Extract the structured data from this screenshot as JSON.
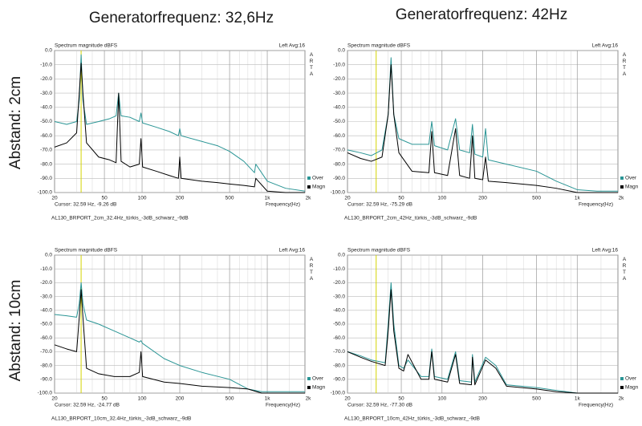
{
  "column_headers": [
    "Generatorfrequenz: 32,6Hz",
    "Generatorfrequenz: 42Hz"
  ],
  "row_labels": [
    "Abstand: 2cm",
    "Abstand: 10cm"
  ],
  "chart_data": [
    {
      "type": "line",
      "title": "Spectrum magnitude dBFS",
      "channel": "Left Avg:16",
      "brand": "ARTA",
      "xlabel": "Frequency(Hz)",
      "xscale": "log",
      "grid": true,
      "x": [
        20,
        25,
        30,
        31.5,
        32.6,
        33.7,
        36,
        45,
        55,
        62,
        65,
        68,
        80,
        95,
        98,
        101,
        130,
        165,
        195,
        200,
        205,
        300,
        400,
        500,
        650,
        790,
        810,
        1000,
        1400,
        2000
      ],
      "series": [
        {
          "name": "Over",
          "color": "#2a9595",
          "values": [
            -50,
            -52,
            -50,
            -35,
            -3,
            -35,
            -52,
            -50,
            -48,
            -46,
            -30,
            -46,
            -47,
            -50,
            -44,
            -51,
            -54,
            -57,
            -60,
            -55,
            -60,
            -64,
            -67,
            -71,
            -78,
            -86,
            -80,
            -92,
            -97,
            -99
          ]
        },
        {
          "name": "Magn",
          "color": "#000000",
          "values": [
            -68,
            -65,
            -58,
            -30,
            -9,
            -30,
            -65,
            -75,
            -77,
            -79,
            -30,
            -78,
            -82,
            -80,
            -62,
            -82,
            -85,
            -88,
            -90,
            -75,
            -90,
            -92,
            -93,
            -94,
            -95,
            -96,
            -90,
            -99,
            -100,
            -100
          ]
        }
      ],
      "xlim": [
        20,
        2000
      ],
      "ylim": [
        -100,
        0
      ],
      "xticks": [
        20,
        50,
        100,
        200,
        500,
        {
          "value": 1000,
          "label": "1k"
        },
        {
          "value": 2000,
          "label": "2k"
        }
      ],
      "xminorticks": [
        30,
        40,
        60,
        70,
        80,
        90,
        150,
        300,
        400,
        600,
        700,
        800,
        900,
        1500
      ],
      "yticks": [
        {
          "value": 0,
          "label": "0.0"
        },
        {
          "value": -10,
          "label": "-10.0"
        },
        {
          "value": -20,
          "label": "-20.0"
        },
        {
          "value": -30,
          "label": "-30.0"
        },
        {
          "value": -40,
          "label": "-40.0"
        },
        {
          "value": -50,
          "label": "-50.0"
        },
        {
          "value": -60,
          "label": "-60.0"
        },
        {
          "value": -70,
          "label": "-70.0"
        },
        {
          "value": -80,
          "label": "-80.0"
        },
        {
          "value": -90,
          "label": "-90.0"
        },
        {
          "value": -100,
          "label": "-100.0"
        }
      ],
      "cursor": 32.59,
      "cursor_color": "#d4d400",
      "cursor_text": "Cursor: 32.59 Hz, -9.26 dB",
      "caption": "AL130_BRPORT_2cm_32.4Hz_türkis_-3dB_schwarz_-9dB"
    },
    {
      "type": "line",
      "title": "Spectrum magnitude dBFS",
      "channel": "Left Avg:16",
      "brand": "ARTA",
      "xlabel": "Frequency(Hz)",
      "xscale": "log",
      "grid": true,
      "x": [
        20,
        25,
        30,
        36,
        40,
        42,
        44,
        48,
        60,
        80,
        84,
        88,
        110,
        126,
        135,
        160,
        168,
        175,
        200,
        210,
        220,
        300,
        500,
        700,
        1000,
        1400,
        2000
      ],
      "series": [
        {
          "name": "Over",
          "color": "#2a9595",
          "values": [
            -70,
            -72,
            -74,
            -70,
            -45,
            -5,
            -45,
            -62,
            -66,
            -66,
            -50,
            -67,
            -70,
            -48,
            -70,
            -72,
            -52,
            -73,
            -75,
            -55,
            -77,
            -80,
            -85,
            -92,
            -98,
            -99,
            -99
          ]
        },
        {
          "name": "Magn",
          "color": "#000000",
          "values": [
            -72,
            -76,
            -78,
            -75,
            -45,
            -10,
            -45,
            -72,
            -85,
            -86,
            -57,
            -86,
            -88,
            -55,
            -88,
            -90,
            -60,
            -90,
            -91,
            -75,
            -92,
            -93,
            -95,
            -97,
            -100,
            -100,
            -100
          ]
        }
      ],
      "xlim": [
        20,
        2000
      ],
      "ylim": [
        -100,
        0
      ],
      "xticks": [
        20,
        50,
        100,
        200,
        500,
        {
          "value": 1000,
          "label": "1k"
        },
        {
          "value": 2000,
          "label": "2k"
        }
      ],
      "xminorticks": [
        30,
        40,
        60,
        70,
        80,
        90,
        150,
        300,
        400,
        600,
        700,
        800,
        900,
        1500
      ],
      "yticks": [
        {
          "value": 0,
          "label": "0.0"
        },
        {
          "value": -10,
          "label": "-10.0"
        },
        {
          "value": -20,
          "label": "-20.0"
        },
        {
          "value": -30,
          "label": "-30.0"
        },
        {
          "value": -40,
          "label": "-40.0"
        },
        {
          "value": -50,
          "label": "-50.0"
        },
        {
          "value": -60,
          "label": "-60.0"
        },
        {
          "value": -70,
          "label": "-70.0"
        },
        {
          "value": -80,
          "label": "-80.0"
        },
        {
          "value": -90,
          "label": "-90.0"
        },
        {
          "value": -100,
          "label": "-100.0"
        }
      ],
      "cursor": 32.59,
      "cursor_color": "#d4d400",
      "cursor_text": "Cursor: 32.59 Hz, -75.29 dB",
      "caption": "AL130_BRPORT_2cm_42Hz_türkis_-3dB_schwarz_-9dB"
    },
    {
      "type": "line",
      "title": "Spectrum magnitude dBFS",
      "channel": "Left Avg:16",
      "brand": "ARTA",
      "xlabel": "Frequency(Hz)",
      "xscale": "log",
      "grid": true,
      "x": [
        20,
        25,
        30,
        31.5,
        32.6,
        33.7,
        36,
        45,
        60,
        80,
        95,
        98,
        101,
        150,
        200,
        300,
        500,
        700,
        900,
        1300,
        2000
      ],
      "series": [
        {
          "name": "Over",
          "color": "#2a9595",
          "values": [
            -43,
            -44,
            -45,
            -35,
            -20,
            -35,
            -47,
            -50,
            -55,
            -60,
            -63,
            -62,
            -64,
            -75,
            -80,
            -85,
            -90,
            -97,
            -99,
            -99,
            -99
          ]
        },
        {
          "name": "Magn",
          "color": "#000000",
          "values": [
            -65,
            -68,
            -70,
            -45,
            -25,
            -45,
            -82,
            -86,
            -88,
            -88,
            -85,
            -70,
            -88,
            -92,
            -93,
            -95,
            -96,
            -97,
            -100,
            -100,
            -100
          ]
        }
      ],
      "xlim": [
        20,
        2000
      ],
      "ylim": [
        -100,
        0
      ],
      "xticks": [
        20,
        50,
        100,
        200,
        500,
        {
          "value": 1000,
          "label": "1k"
        },
        {
          "value": 2000,
          "label": "2k"
        }
      ],
      "xminorticks": [
        30,
        40,
        60,
        70,
        80,
        90,
        150,
        300,
        400,
        600,
        700,
        800,
        900,
        1500
      ],
      "yticks": [
        {
          "value": 0,
          "label": "0.0"
        },
        {
          "value": -10,
          "label": "-10.0"
        },
        {
          "value": -20,
          "label": "-20.0"
        },
        {
          "value": -30,
          "label": "-30.0"
        },
        {
          "value": -40,
          "label": "-40.0"
        },
        {
          "value": -50,
          "label": "-50.0"
        },
        {
          "value": -60,
          "label": "-60.0"
        },
        {
          "value": -70,
          "label": "-70.0"
        },
        {
          "value": -80,
          "label": "-80.0"
        },
        {
          "value": -90,
          "label": "-90.0"
        },
        {
          "value": -100,
          "label": "-100.0"
        }
      ],
      "cursor": 32.59,
      "cursor_color": "#d4d400",
      "cursor_text": "Cursor: 32.59 Hz, -24.77 dB",
      "caption": "AL130_BRPORT_10cm_32.4Hz_türkis_-3dB_schwarz_-9dB"
    },
    {
      "type": "line",
      "title": "Spectrum magnitude dBFS",
      "channel": "Left Avg:16",
      "brand": "ARTA",
      "xlabel": "Frequency(Hz)",
      "xscale": "log",
      "grid": true,
      "x": [
        20,
        25,
        30,
        38,
        40,
        42,
        44,
        48,
        52,
        56,
        70,
        80,
        84,
        88,
        110,
        126,
        135,
        165,
        168,
        175,
        210,
        250,
        300,
        500,
        700,
        1000,
        2000
      ],
      "series": [
        {
          "name": "Over",
          "color": "#2a9595",
          "values": [
            -70,
            -73,
            -76,
            -78,
            -50,
            -20,
            -50,
            -80,
            -82,
            -76,
            -88,
            -88,
            -68,
            -88,
            -90,
            -70,
            -91,
            -92,
            -72,
            -92,
            -74,
            -80,
            -94,
            -96,
            -98,
            -100,
            -100
          ]
        },
        {
          "name": "Magn",
          "color": "#000000",
          "values": [
            -70,
            -74,
            -77,
            -80,
            -55,
            -25,
            -55,
            -82,
            -84,
            -72,
            -90,
            -90,
            -70,
            -90,
            -92,
            -72,
            -93,
            -94,
            -74,
            -94,
            -76,
            -82,
            -95,
            -97,
            -99,
            -100,
            -100
          ]
        }
      ],
      "xlim": [
        20,
        2000
      ],
      "ylim": [
        -100,
        0
      ],
      "xticks": [
        20,
        50,
        100,
        200,
        500,
        {
          "value": 1000,
          "label": "1k"
        },
        {
          "value": 2000,
          "label": "2k"
        }
      ],
      "xminorticks": [
        30,
        40,
        60,
        70,
        80,
        90,
        150,
        300,
        400,
        600,
        700,
        800,
        900,
        1500
      ],
      "yticks": [
        {
          "value": 0,
          "label": "0.0"
        },
        {
          "value": -10,
          "label": "-10.0"
        },
        {
          "value": -20,
          "label": "-20.0"
        },
        {
          "value": -30,
          "label": "-30.0"
        },
        {
          "value": -40,
          "label": "-40.0"
        },
        {
          "value": -50,
          "label": "-50.0"
        },
        {
          "value": -60,
          "label": "-60.0"
        },
        {
          "value": -70,
          "label": "-70.0"
        },
        {
          "value": -80,
          "label": "-80.0"
        },
        {
          "value": -90,
          "label": "-90.0"
        },
        {
          "value": -100,
          "label": "-100.0"
        }
      ],
      "cursor": 32.59,
      "cursor_color": "#d4d400",
      "cursor_text": "Cursor: 32.59 Hz, -77.30 dB",
      "caption": "AL130_BRPORT_10cm_42Hz_türkis_-3dB_schwarz_-9dB"
    }
  ]
}
